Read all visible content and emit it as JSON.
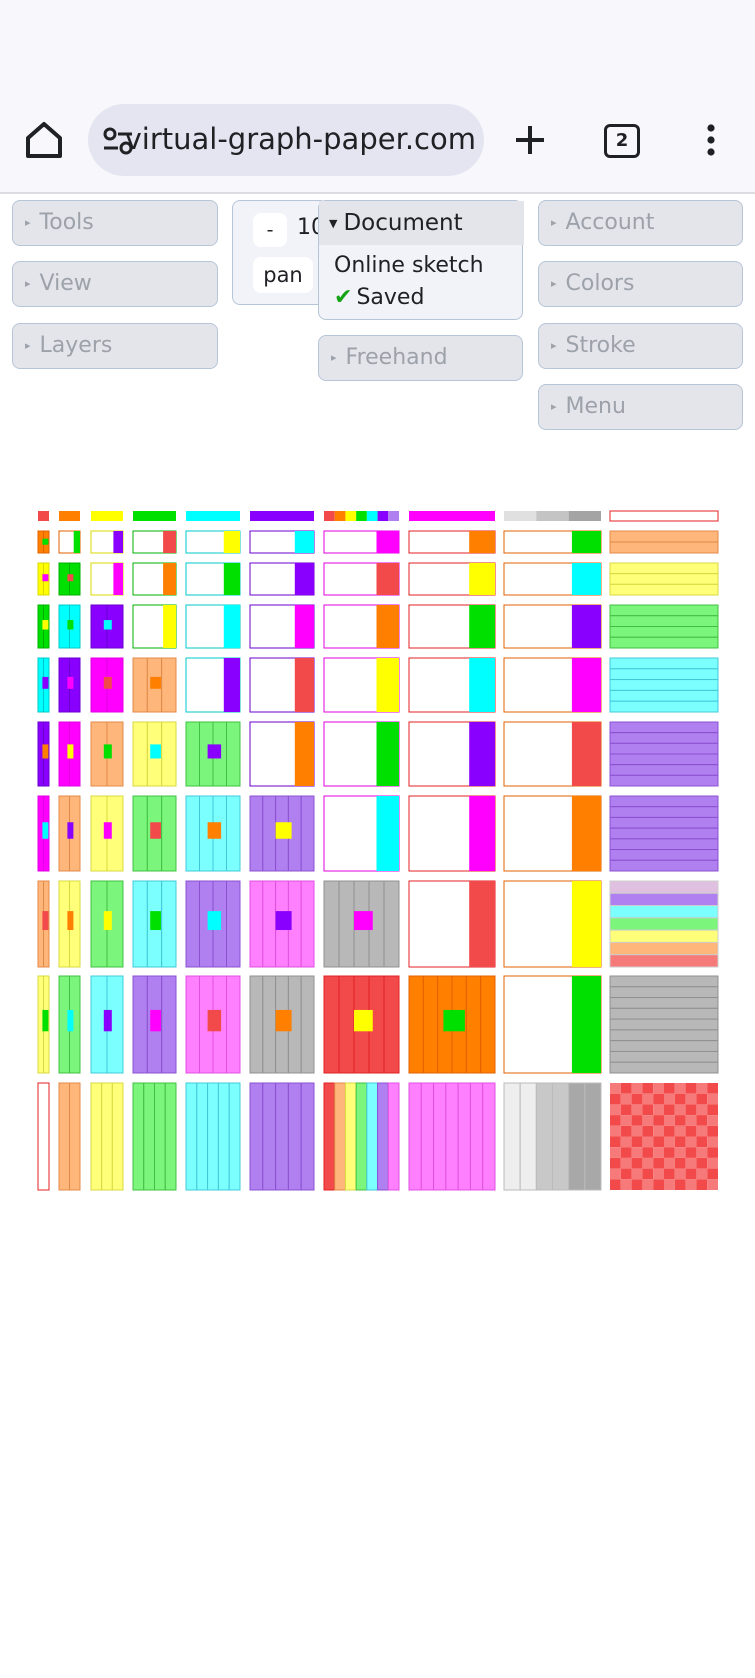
{
  "browser": {
    "url": "virtual-graph-paper.com",
    "tab_count": "2",
    "home_icon": "home-icon",
    "site_info_icon": "site-settings-icon",
    "new_tab_icon": "plus-icon",
    "overflow_icon": "more-vert-icon"
  },
  "panels": {
    "tools": "Tools",
    "view": "View",
    "layers": "Layers",
    "freehand": "Freehand",
    "account": "Account",
    "colors": "Colors",
    "stroke": "Stroke",
    "menu": "Menu"
  },
  "zoom": {
    "minus_label": "-",
    "value": "10",
    "pan_label": "pan"
  },
  "document": {
    "header": "Document",
    "name": "Online sketch",
    "status": "Saved"
  },
  "gallery": {
    "description_note_none": "",
    "palette": {
      "R": "#f24a4a",
      "O": "#ff7f00",
      "Y": "#ffff00",
      "G": "#00e000",
      "C": "#00ffff",
      "V": "#8a00ff",
      "M": "#ff00ff",
      "P": "#ffb67a",
      "Ly": "#ffff7a",
      "Lg": "#7cf57c",
      "Lc": "#7cffff",
      "Lv": "#b07ff0",
      "Lm": "#ff80ff",
      "Gr": "#b8b8b8"
    }
  }
}
